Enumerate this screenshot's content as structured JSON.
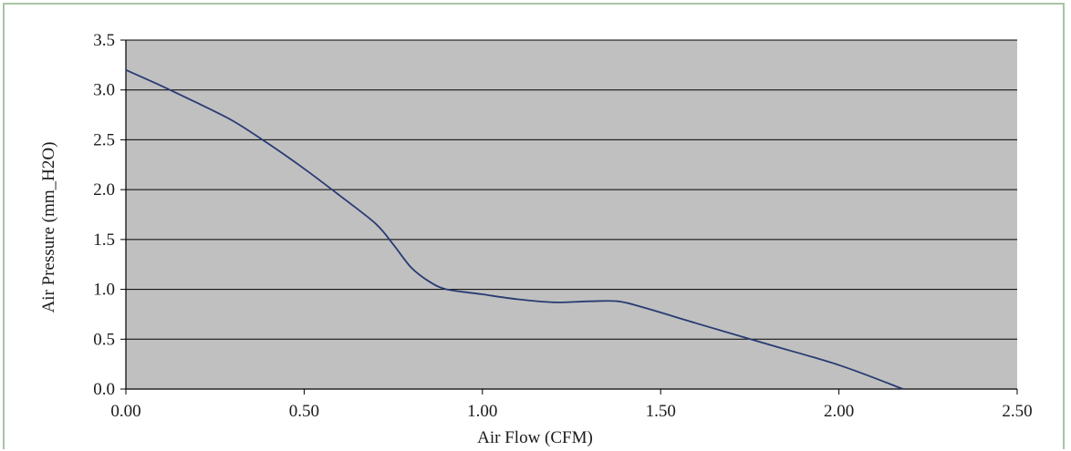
{
  "chart_data": {
    "type": "line",
    "title": "",
    "xlabel": "Air Flow (CFM)",
    "ylabel": "Air Pressure (mm_H2O)",
    "xlim": [
      0,
      2.5
    ],
    "ylim": [
      0,
      3.5
    ],
    "x_ticks": [
      "0.00",
      "0.50",
      "1.00",
      "1.50",
      "2.00",
      "2.50"
    ],
    "y_ticks": [
      "0.0",
      "0.5",
      "1.0",
      "1.5",
      "2.0",
      "2.5",
      "3.0",
      "3.5"
    ],
    "grid": "horizontal",
    "legend": "none",
    "series": [
      {
        "x": [
          0.0,
          0.1,
          0.2,
          0.3,
          0.4,
          0.5,
          0.6,
          0.7,
          0.75,
          0.8,
          0.85,
          0.9,
          1.0,
          1.1,
          1.2,
          1.3,
          1.38,
          1.45,
          1.6,
          1.8,
          2.0,
          2.18
        ],
        "y": [
          3.2,
          3.04,
          2.87,
          2.69,
          2.46,
          2.21,
          1.94,
          1.66,
          1.45,
          1.22,
          1.08,
          1.0,
          0.95,
          0.9,
          0.87,
          0.88,
          0.88,
          0.82,
          0.66,
          0.45,
          0.24,
          0.0
        ]
      }
    ],
    "colors": {
      "plot_background": "#c0c0c0",
      "line": "#283b73",
      "gridline": "#000000",
      "frame_border": "#a6c6a4"
    }
  }
}
